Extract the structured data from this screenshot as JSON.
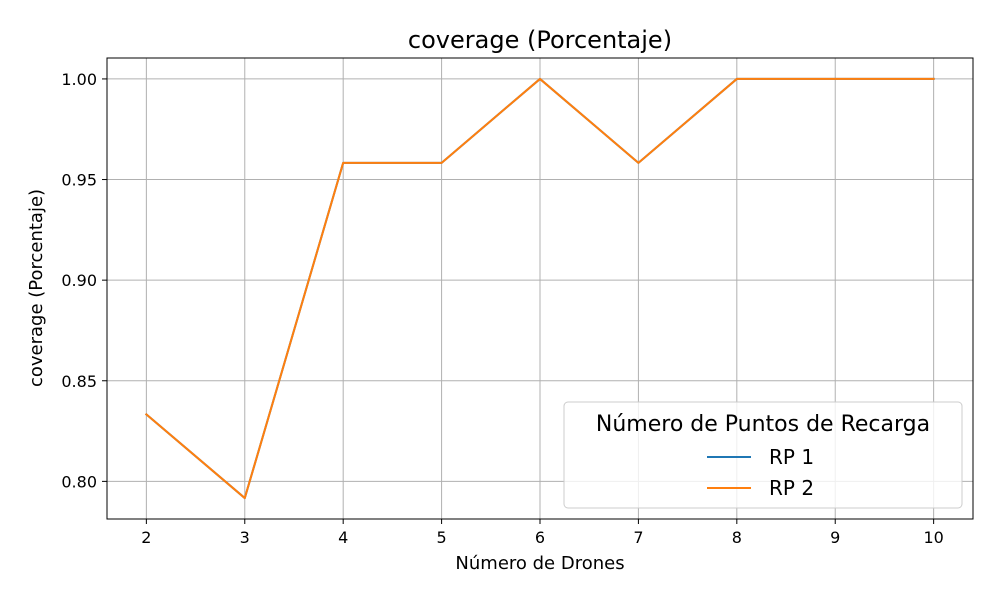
{
  "chart_data": {
    "type": "line",
    "title": "coverage (Porcentaje)",
    "xlabel": "Número de Drones",
    "ylabel": "coverage (Porcentaje)",
    "x": [
      2,
      3,
      4,
      5,
      6,
      7,
      8,
      9,
      10
    ],
    "xticks": [
      "2",
      "3",
      "4",
      "5",
      "6",
      "7",
      "8",
      "9",
      "10"
    ],
    "yticks": [
      "0.80",
      "0.85",
      "0.90",
      "0.95",
      "1.00"
    ],
    "ytick_values": [
      0.8,
      0.85,
      0.9,
      0.95,
      1.0
    ],
    "xlim": [
      1.6,
      10.4
    ],
    "ylim": [
      0.7813,
      1.0104
    ],
    "grid": true,
    "legend": {
      "title": "Número de Puntos de Recarga",
      "placement": "lower-right"
    },
    "series": [
      {
        "name": "RP 1",
        "color": "#1f77b4",
        "values": [
          0.8333,
          0.7917,
          0.9583,
          0.9583,
          1.0,
          0.9583,
          1.0,
          1.0,
          1.0
        ]
      },
      {
        "name": "RP 2",
        "color": "#ff7f0e",
        "values": [
          0.8333,
          0.7917,
          0.9583,
          0.9583,
          1.0,
          0.9583,
          1.0,
          1.0,
          1.0
        ]
      }
    ]
  }
}
